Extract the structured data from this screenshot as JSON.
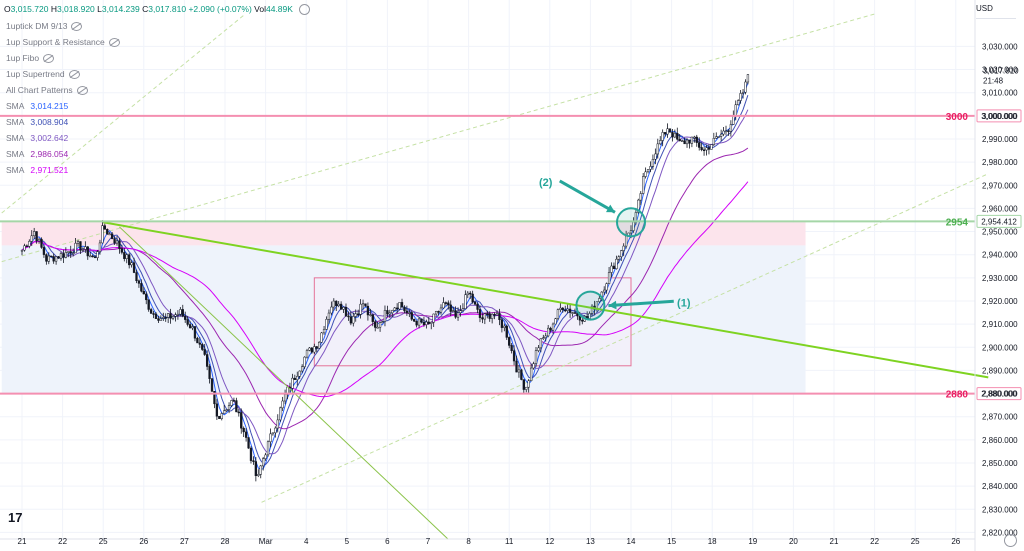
{
  "header": {
    "ohlc": {
      "o_label": "O",
      "o": "3,015.720",
      "h_label": "H",
      "h": "3,018.920",
      "l_label": "L",
      "l": "3,014.239",
      "c_label": "C",
      "c": "3,017.810",
      "change": "+2.090 (+0.07%)",
      "vol_label": "Vol",
      "vol": "44.89K"
    },
    "currency": "USD"
  },
  "indicators": [
    {
      "name": "1uptick DM 9/13",
      "value": ""
    },
    {
      "name": "1up Support & Resistance",
      "value": ""
    },
    {
      "name": "1up Fibo",
      "value": ""
    },
    {
      "name": "1up Supertrend",
      "value": ""
    },
    {
      "name": "All Chart Patterns",
      "value": ""
    },
    {
      "name": "SMA",
      "value": "3,014.215",
      "color": "#2962ff"
    },
    {
      "name": "SMA",
      "value": "3,008.904",
      "color": "#3f51b5"
    },
    {
      "name": "SMA",
      "value": "3,002.642",
      "color": "#7e57c2"
    },
    {
      "name": "SMA",
      "value": "2,986.054",
      "color": "#9c27b0"
    },
    {
      "name": "SMA",
      "value": "2,971.521",
      "color": "#d500f9"
    }
  ],
  "chart_data": {
    "type": "candlestick",
    "instrument_currency": "USD",
    "ylim": [
      2815,
      3044
    ],
    "y_ticks": [
      2820,
      2830,
      2840,
      2850,
      2860,
      2870,
      2880,
      2890,
      2900,
      2910,
      2920,
      2930,
      2940,
      2950,
      2960,
      2970,
      2980,
      2990,
      3000,
      3010,
      3020,
      3030
    ],
    "x_ticks": [
      "21",
      "22",
      "25",
      "26",
      "27",
      "28",
      "Mar",
      "4",
      "5",
      "6",
      "7",
      "8",
      "11",
      "12",
      "13",
      "14",
      "15",
      "18",
      "19",
      "20",
      "21",
      "22",
      "25",
      "26"
    ],
    "x_tick_day_index": [
      0,
      1,
      2,
      3,
      4,
      5,
      6,
      7,
      8,
      9,
      10,
      11,
      12,
      13,
      14,
      15,
      16,
      17,
      18,
      19,
      20,
      21,
      22,
      23
    ],
    "price_path": [
      [
        0.0,
        2942
      ],
      [
        0.3,
        2950
      ],
      [
        0.6,
        2938
      ],
      [
        1.0,
        2940
      ],
      [
        1.4,
        2944
      ],
      [
        1.8,
        2938
      ],
      [
        2.0,
        2952
      ],
      [
        2.3,
        2946
      ],
      [
        2.7,
        2935
      ],
      [
        3.0,
        2922
      ],
      [
        3.2,
        2915
      ],
      [
        3.5,
        2912
      ],
      [
        3.9,
        2915
      ],
      [
        4.2,
        2908
      ],
      [
        4.5,
        2895
      ],
      [
        4.8,
        2870
      ],
      [
        5.2,
        2877
      ],
      [
        5.5,
        2862
      ],
      [
        5.8,
        2842
      ],
      [
        5.9,
        2850
      ],
      [
        6.2,
        2865
      ],
      [
        6.5,
        2880
      ],
      [
        6.8,
        2890
      ],
      [
        7.0,
        2897
      ],
      [
        7.3,
        2902
      ],
      [
        7.6,
        2918
      ],
      [
        7.8,
        2920
      ],
      [
        8.1,
        2912
      ],
      [
        8.4,
        2919
      ],
      [
        8.7,
        2908
      ],
      [
        9.0,
        2916
      ],
      [
        9.3,
        2919
      ],
      [
        9.6,
        2912
      ],
      [
        10.0,
        2909
      ],
      [
        10.4,
        2919
      ],
      [
        10.7,
        2912
      ],
      [
        11.0,
        2924
      ],
      [
        11.3,
        2912
      ],
      [
        11.6,
        2915
      ],
      [
        11.9,
        2908
      ],
      [
        12.2,
        2890
      ],
      [
        12.4,
        2882
      ],
      [
        12.7,
        2900
      ],
      [
        13.0,
        2908
      ],
      [
        13.3,
        2918
      ],
      [
        13.6,
        2915
      ],
      [
        13.9,
        2912
      ],
      [
        14.1,
        2918
      ],
      [
        14.3,
        2925
      ],
      [
        14.5,
        2933
      ],
      [
        14.7,
        2940
      ],
      [
        14.9,
        2948
      ],
      [
        15.1,
        2955
      ],
      [
        15.3,
        2972
      ],
      [
        15.6,
        2985
      ],
      [
        15.9,
        2995
      ],
      [
        16.2,
        2988
      ],
      [
        16.5,
        2990
      ],
      [
        16.8,
        2985
      ],
      [
        17.1,
        2990
      ],
      [
        17.4,
        2995
      ],
      [
        17.6,
        3004
      ],
      [
        17.8,
        3012
      ],
      [
        17.9,
        3017.81
      ]
    ],
    "sma_series": [
      {
        "color": "#2962ff",
        "last_value": 3014.215
      },
      {
        "color": "#3f51b5",
        "last_value": 3008.904
      },
      {
        "color": "#7e57c2",
        "last_value": 3002.642
      },
      {
        "color": "#9c27b0",
        "last_value": 2986.054
      },
      {
        "color": "#d500f9",
        "last_value": 2971.521
      }
    ],
    "horizontal_levels": [
      {
        "label": "3000",
        "axis_label": "3,000.000",
        "value": 3000,
        "color": "#f48fb1",
        "text_color": "#e91e63"
      },
      {
        "label": "2954",
        "axis_label": "2,954.412",
        "value": 2954.412,
        "color": "#a5d6a7",
        "text_color": "#4caf50"
      },
      {
        "label": "2880",
        "axis_label": "2,880.000",
        "value": 2880,
        "color": "#f48fb1",
        "text_color": "#e91e63"
      }
    ],
    "last_price": {
      "value": "3,017.810",
      "countdown": "21:48"
    },
    "zones": [
      {
        "name": "resistance-zone",
        "from_day": -0.5,
        "to_day": 19.3,
        "y_low": 2944,
        "y_high": 2954,
        "color": "#fce4ec"
      },
      {
        "name": "range-zone",
        "from_day": -0.5,
        "to_day": 19.3,
        "y_low": 2880,
        "y_high": 2944,
        "color": "#eef3fb"
      },
      {
        "name": "consolidation-box",
        "from_day": 7.2,
        "to_day": 15.0,
        "y_low": 2892,
        "y_high": 2930,
        "color": "#f3eefa"
      }
    ],
    "trendlines": [
      {
        "name": "main-downtrend-line",
        "from": [
          2.0,
          2954
        ],
        "to": [
          23.8,
          2887
        ],
        "color": "#7ed321",
        "width": 2
      },
      {
        "name": "steep-downtrend-line",
        "from": [
          2.4,
          2952
        ],
        "to": [
          10.5,
          2817
        ],
        "color": "#8bc34a",
        "width": 1
      },
      {
        "name": "upper-channel-line",
        "from": [
          -0.5,
          2937
        ],
        "to": [
          21.0,
          3044
        ],
        "color": "#c5e1a5",
        "width": 1,
        "dashed": true
      },
      {
        "name": "mid-channel-line",
        "from": [
          -0.5,
          2958
        ],
        "to": [
          5.5,
          3044
        ],
        "color": "#c5e1a5",
        "width": 1,
        "dashed": true
      },
      {
        "name": "lower-channel-line",
        "from": [
          5.9,
          2833
        ],
        "to": [
          23.8,
          2975
        ],
        "color": "#c5e1a5",
        "width": 1,
        "dashed": true
      }
    ],
    "annotations": [
      {
        "label": "(1)",
        "circle_day": 14.0,
        "circle_price": 2918,
        "label_day": 16.3,
        "label_price": 2919,
        "color": "#26a69a"
      },
      {
        "label": "(2)",
        "circle_day": 15.0,
        "circle_price": 2954,
        "label_day": 12.9,
        "label_price": 2971,
        "color": "#26a69a"
      }
    ]
  }
}
